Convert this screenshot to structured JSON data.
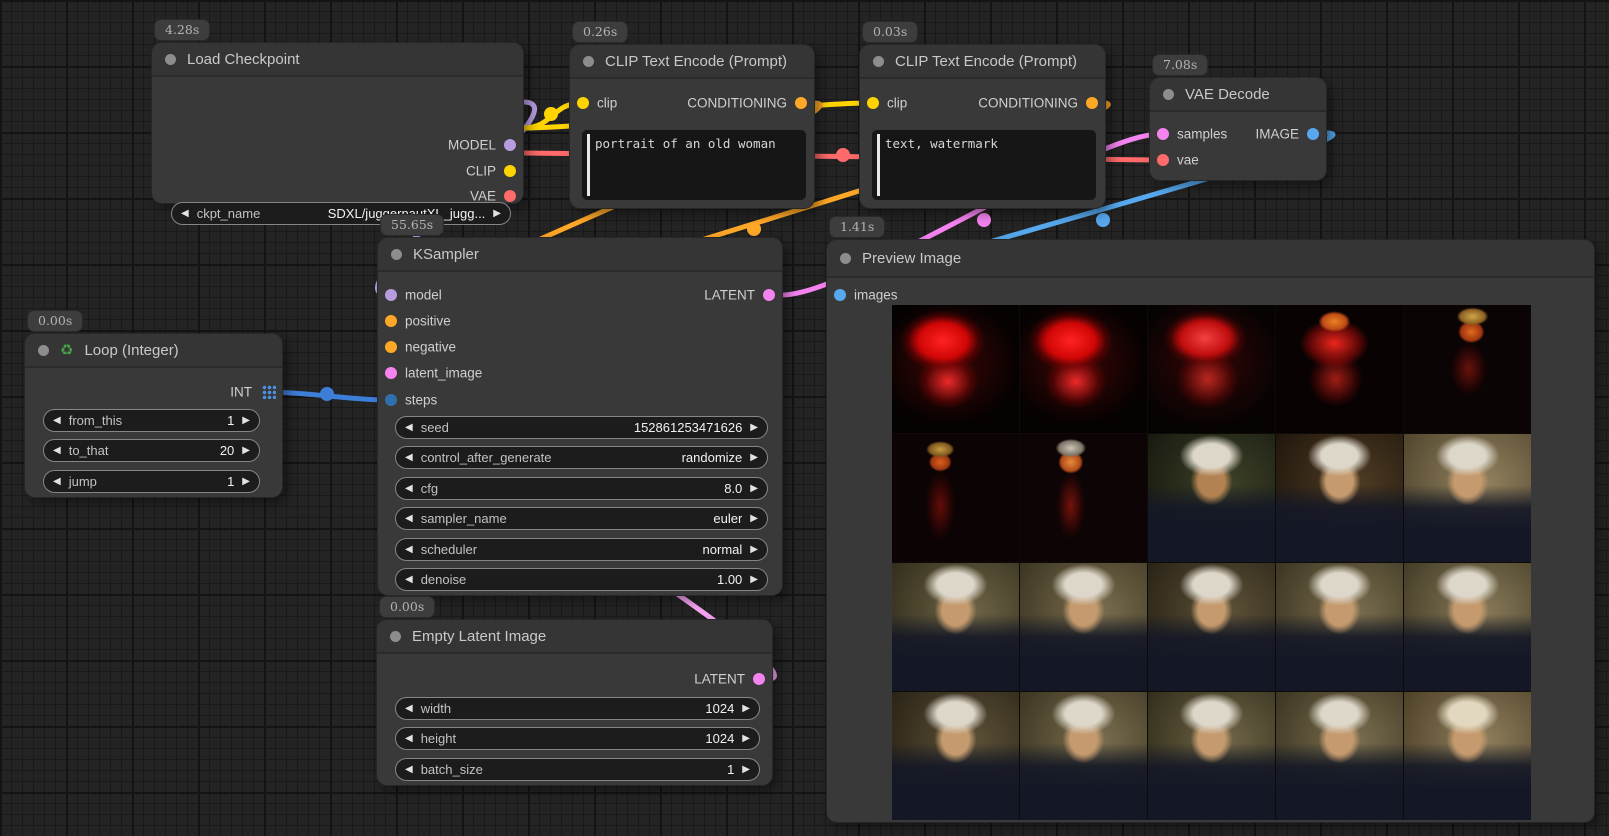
{
  "ui": {
    "left_arrow": "◀",
    "right_arrow": "▶"
  },
  "colors": {
    "model": "#b79ce0",
    "clip": "#ffd400",
    "vae": "#ff6a6a",
    "conditioning": "#ffa727",
    "latent": "#f583f0",
    "image": "#57a8ee",
    "int": "#3d7ed8"
  },
  "nodes": {
    "load_checkpoint": {
      "badge": "4.28s",
      "title": "Load Checkpoint",
      "outputs": [
        {
          "label": "MODEL"
        },
        {
          "label": "CLIP"
        },
        {
          "label": "VAE"
        }
      ],
      "widgets": [
        {
          "name": "ckpt_name",
          "value": "SDXL/juggernautXL_jugg..."
        }
      ]
    },
    "clip_encode_positive": {
      "badge": "0.26s",
      "title": "CLIP Text Encode (Prompt)",
      "input": "clip",
      "output": "CONDITIONING",
      "text": "portrait of an old woman"
    },
    "clip_encode_negative": {
      "badge": "0.03s",
      "title": "CLIP Text Encode (Prompt)",
      "input": "clip",
      "output": "CONDITIONING",
      "text": "text, watermark"
    },
    "vae_decode": {
      "badge": "7.08s",
      "title": "VAE Decode",
      "inputs": [
        {
          "label": "samples"
        },
        {
          "label": "vae"
        }
      ],
      "output": "IMAGE"
    },
    "ksampler": {
      "badge": "55.65s",
      "title": "KSampler",
      "inputs": [
        {
          "label": "model"
        },
        {
          "label": "positive"
        },
        {
          "label": "negative"
        },
        {
          "label": "latent_image"
        },
        {
          "label": "steps"
        }
      ],
      "output": "LATENT",
      "widgets": [
        {
          "name": "seed",
          "value": "152861253471626"
        },
        {
          "name": "control_after_generate",
          "value": "randomize"
        },
        {
          "name": "cfg",
          "value": "8.0"
        },
        {
          "name": "sampler_name",
          "value": "euler"
        },
        {
          "name": "scheduler",
          "value": "normal"
        },
        {
          "name": "denoise",
          "value": "1.00"
        }
      ]
    },
    "loop_integer": {
      "badge": "0.00s",
      "title_icon": "♻",
      "title": "Loop (Integer)",
      "output": "INT",
      "widgets": [
        {
          "name": "from_this",
          "value": "1"
        },
        {
          "name": "to_that",
          "value": "20"
        },
        {
          "name": "jump",
          "value": "1"
        }
      ]
    },
    "empty_latent": {
      "badge": "0.00s",
      "title": "Empty Latent Image",
      "output": "LATENT",
      "widgets": [
        {
          "name": "width",
          "value": "1024"
        },
        {
          "name": "height",
          "value": "1024"
        },
        {
          "name": "batch_size",
          "value": "1"
        }
      ]
    },
    "preview_image": {
      "badge": "1.41s",
      "title": "Preview Image",
      "input": "images",
      "cells": [
        "red-a",
        "red-a",
        "red-b",
        "red-c",
        "turban-a",
        "turban-b",
        "emerge",
        "pt pt-dark",
        "pt pt-warm",
        "pt pt-light",
        "pt pt-a",
        "pt pt-b",
        "pt pt-c",
        "pt pt-b",
        "pt pt-d",
        "pt pt-c",
        "pt pt-b",
        "pt pt-a",
        "pt pt-b",
        "pt pt-e"
      ]
    }
  }
}
